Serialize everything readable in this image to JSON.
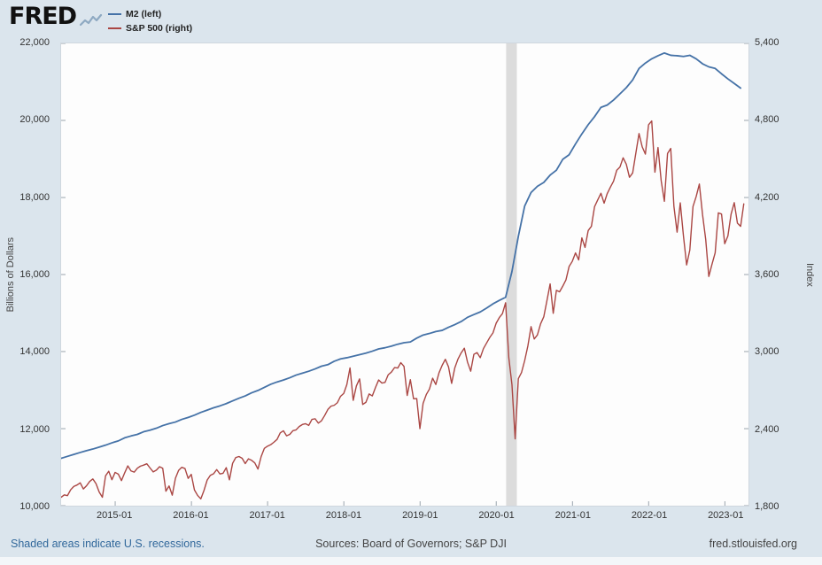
{
  "header": {
    "logo_text": "FRED"
  },
  "footer": {
    "recessions_note": "Shaded areas indicate U.S. recessions.",
    "sources": "Sources: Board of Governors; S&P DJI",
    "site": "fred.stlouisfed.org"
  },
  "chart_data": {
    "type": "line",
    "title": "",
    "grid": "off",
    "legend_position": "top-left",
    "recession_color": "#dcdcdc",
    "recessions": [
      {
        "start": 2020.13,
        "end": 2020.27
      }
    ],
    "x_axis": {
      "min": 2014.29,
      "max": 2023.31,
      "ticks": [
        {
          "value": 2015,
          "label": "2015-01"
        },
        {
          "value": 2016,
          "label": "2016-01"
        },
        {
          "value": 2017,
          "label": "2017-01"
        },
        {
          "value": 2018,
          "label": "2018-01"
        },
        {
          "value": 2019,
          "label": "2019-01"
        },
        {
          "value": 2020,
          "label": "2020-01"
        },
        {
          "value": 2021,
          "label": "2021-01"
        },
        {
          "value": 2022,
          "label": "2022-01"
        },
        {
          "value": 2023,
          "label": "2023-01"
        }
      ]
    },
    "left_axis": {
      "title": "Billions of Dollars",
      "min": 10000,
      "max": 22000,
      "tick_values": [
        10000,
        12000,
        14000,
        16000,
        18000,
        20000,
        22000
      ],
      "tick_labels": [
        "10,000",
        "12,000",
        "14,000",
        "16,000",
        "18,000",
        "20,000",
        "22,000"
      ]
    },
    "right_axis": {
      "title": "Index",
      "min": 1800,
      "max": 5400,
      "tick_values": [
        1800,
        2400,
        3000,
        3600,
        4200,
        4800,
        5400
      ],
      "tick_labels": [
        "1,800",
        "2,400",
        "3,000",
        "3,600",
        "4,200",
        "4,800",
        "5,400"
      ]
    },
    "series": [
      {
        "id": "m2",
        "name": "M2 (left)",
        "axis": "left",
        "color": "#4572a7",
        "stroke_width": 1.8,
        "x_start": 2014.29,
        "x_step": 0.0833333,
        "values": [
          11230,
          11280,
          11330,
          11380,
          11430,
          11470,
          11520,
          11570,
          11630,
          11680,
          11760,
          11810,
          11850,
          11920,
          11960,
          12010,
          12080,
          12130,
          12170,
          12240,
          12290,
          12350,
          12420,
          12480,
          12540,
          12590,
          12650,
          12720,
          12790,
          12850,
          12930,
          12990,
          13070,
          13150,
          13210,
          13260,
          13320,
          13390,
          13440,
          13490,
          13550,
          13620,
          13660,
          13750,
          13810,
          13840,
          13880,
          13920,
          13960,
          14010,
          14070,
          14100,
          14140,
          14190,
          14230,
          14250,
          14350,
          14430,
          14470,
          14520,
          14550,
          14630,
          14700,
          14780,
          14890,
          14960,
          15030,
          15130,
          15240,
          15330,
          15410,
          16080,
          16990,
          17780,
          18130,
          18290,
          18390,
          18580,
          18710,
          18990,
          19110,
          19390,
          19650,
          19890,
          20100,
          20340,
          20400,
          20530,
          20690,
          20850,
          21050,
          21350,
          21490,
          21600,
          21680,
          21750,
          21690,
          21680,
          21660,
          21690,
          21600,
          21470,
          21390,
          21350,
          21210,
          21080,
          20960,
          20840
        ]
      },
      {
        "id": "sp500",
        "name": "S&P 500 (right)",
        "axis": "right",
        "color": "#aa4643",
        "stroke_width": 1.4,
        "x_start": 2014.29,
        "x_step": 0.0416667,
        "values": [
          1865,
          1884,
          1878,
          1924,
          1950,
          1961,
          1978,
          1930,
          1955,
          1988,
          2008,
          1972,
          1906,
          1865,
          2032,
          2068,
          2002,
          2059,
          2046,
          1995,
          2055,
          2110,
          2071,
          2061,
          2092,
          2108,
          2116,
          2126,
          2094,
          2063,
          2077,
          2104,
          2091,
          1913,
          1953,
          1882,
          2014,
          2075,
          2099,
          2089,
          2012,
          2044,
          1922,
          1880,
          1853,
          1918,
          1999,
          2036,
          2048,
          2081,
          2047,
          2052,
          2096,
          2001,
          2130,
          2175,
          2183,
          2169,
          2128,
          2165,
          2153,
          2133,
          2085,
          2182,
          2246,
          2263,
          2275,
          2294,
          2316,
          2367,
          2383,
          2344,
          2355,
          2384,
          2390,
          2416,
          2432,
          2438,
          2425,
          2472,
          2477,
          2443,
          2461,
          2502,
          2549,
          2575,
          2582,
          2602,
          2652,
          2674,
          2743,
          2873,
          2620,
          2732,
          2787,
          2588,
          2605,
          2670,
          2655,
          2720,
          2779,
          2755,
          2760,
          2819,
          2840,
          2875,
          2872,
          2914,
          2885,
          2658,
          2781,
          2633,
          2634,
          2400,
          2596,
          2665,
          2708,
          2793,
          2743,
          2834,
          2893,
          2940,
          2881,
          2752,
          2873,
          2942,
          2990,
          3026,
          2918,
          2847,
          2979,
          2992,
          2952,
          3023,
          3067,
          3110,
          3146,
          3221,
          3265,
          3295,
          3380,
          2954,
          2741,
          2320,
          2789,
          2837,
          2930,
          3044,
          3194,
          3098,
          3130,
          3216,
          3271,
          3397,
          3527,
          3298,
          3477,
          3465,
          3509,
          3558,
          3663,
          3703,
          3768,
          3714,
          3886,
          3811,
          3943,
          3975,
          4129,
          4181,
          4233,
          4156,
          4230,
          4281,
          4327,
          4412,
          4437,
          4509,
          4459,
          4357,
          4391,
          4545,
          4698,
          4595,
          4538,
          4766,
          4796,
          4397,
          4589,
          4330,
          4170,
          4543,
          4582,
          4131,
          3930,
          4158,
          3900,
          3675,
          3790,
          4130,
          4207,
          4305,
          4067,
          3873,
          3585,
          3680,
          3770,
          4080,
          4071,
          3840,
          3900,
          4070,
          4160,
          4000,
          3975,
          4150
        ]
      }
    ]
  }
}
